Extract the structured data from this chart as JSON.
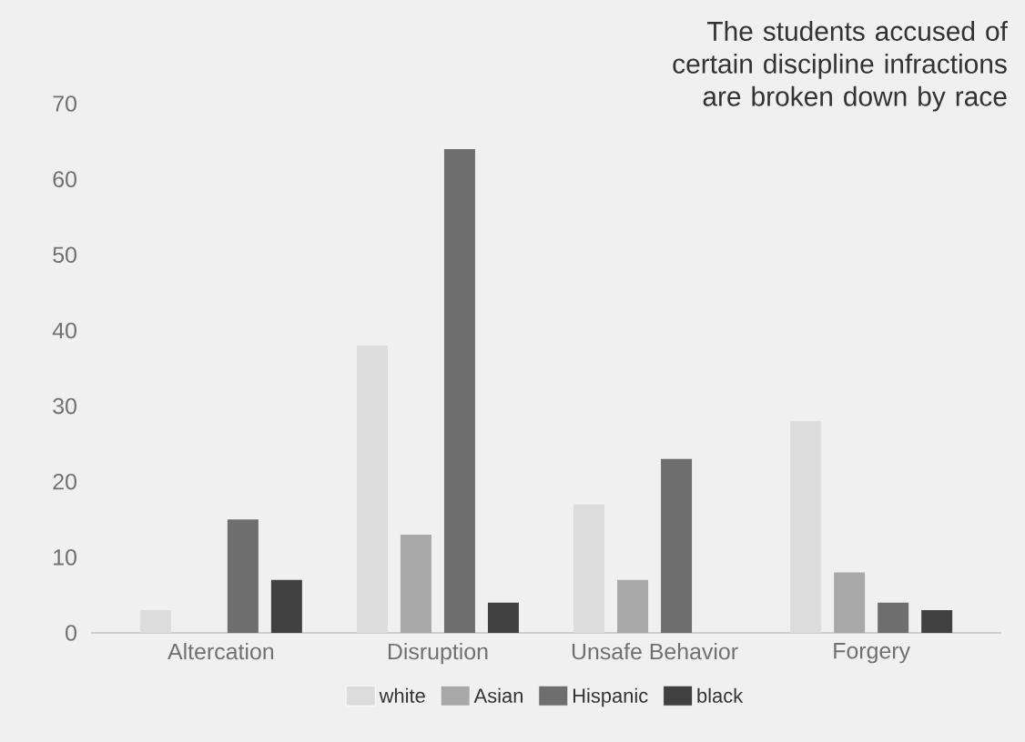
{
  "chart_data": {
    "type": "bar",
    "title": "The students accused of certain discipline infractions are broken down by race",
    "categories": [
      "Altercation",
      "Disruption",
      "Unsafe Behavior",
      "Forgery"
    ],
    "series": [
      {
        "name": "white",
        "color": "#dcdcdc",
        "values": [
          3,
          38,
          17,
          28
        ]
      },
      {
        "name": "Asian",
        "color": "#a8a8a8",
        "values": [
          0,
          13,
          7,
          8
        ]
      },
      {
        "name": "Hispanic",
        "color": "#6e6e6e",
        "values": [
          15,
          64,
          23,
          4
        ]
      },
      {
        "name": "black",
        "color": "#404040",
        "values": [
          7,
          4,
          0,
          3
        ]
      }
    ],
    "ylim": [
      0,
      70
    ],
    "yticks": [
      0,
      10,
      20,
      30,
      40,
      50,
      60,
      70
    ],
    "legend": "bottom"
  }
}
